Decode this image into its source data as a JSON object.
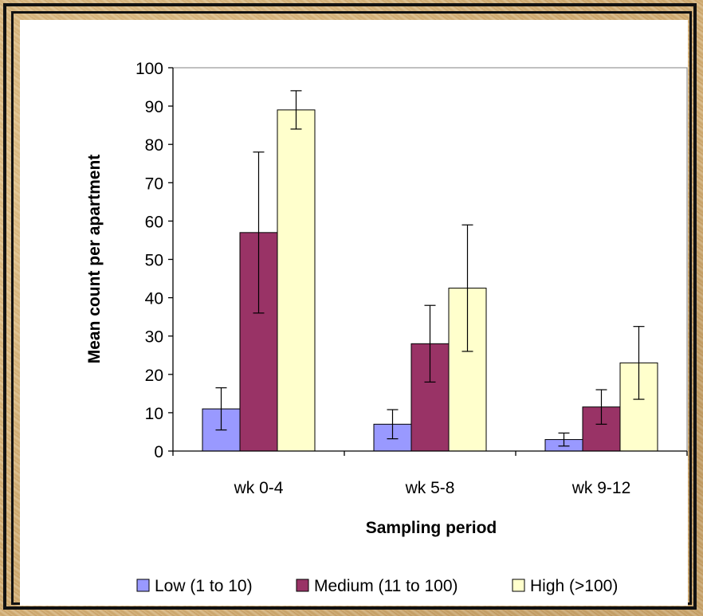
{
  "chart_data": {
    "type": "bar",
    "title": "",
    "xlabel": "Sampling period",
    "ylabel": "Mean count per apartment",
    "ylim": [
      0,
      100
    ],
    "yticks": [
      0,
      10,
      20,
      30,
      40,
      50,
      60,
      70,
      80,
      90,
      100
    ],
    "categories": [
      "wk 0-4",
      "wk 5-8",
      "wk 9-12"
    ],
    "series": [
      {
        "name": "Low (1 to 10)",
        "color": "#9999ff",
        "values": [
          11,
          7,
          3
        ],
        "error": [
          5.5,
          3.8,
          1.7
        ]
      },
      {
        "name": "Medium (11 to 100)",
        "color": "#993366",
        "values": [
          57,
          28,
          11.5
        ],
        "error": [
          21,
          10,
          4.5
        ]
      },
      {
        "name": "High (>100)",
        "color": "#ffffcc",
        "values": [
          89,
          42.5,
          23
        ],
        "error": [
          5,
          16.5,
          9.5
        ]
      }
    ],
    "grid": false,
    "legend_position": "bottom"
  }
}
